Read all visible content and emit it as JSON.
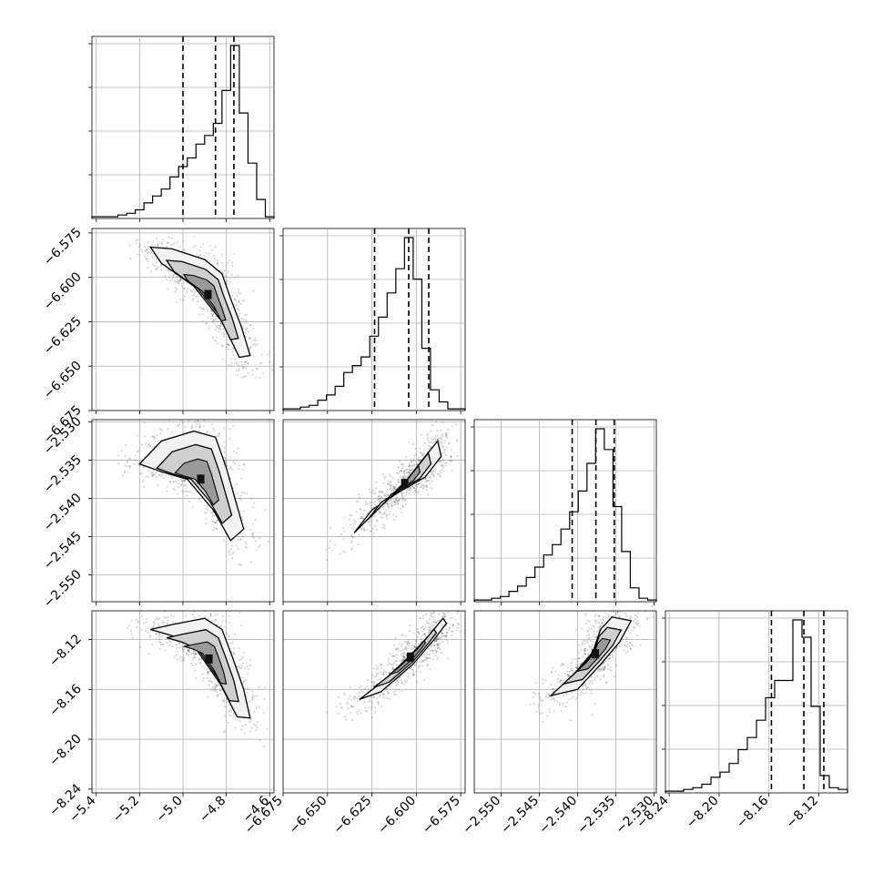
{
  "chart_data": {
    "type": "corner",
    "grid": true,
    "parameters": [
      {
        "range": [
          -5.42,
          -4.58
        ],
        "ticks": [
          -5.4,
          -5.2,
          -5.0,
          -4.8,
          -4.6
        ],
        "tick_labels": [
          "−5.4",
          "−5.2",
          "−5.0",
          "−4.8",
          "−4.6"
        ],
        "quantiles": [
          -5.0,
          -4.85,
          -4.765
        ]
      },
      {
        "range": [
          -6.675,
          -6.5725
        ],
        "ticks": [
          -6.675,
          -6.65,
          -6.625,
          -6.6,
          -6.575
        ],
        "tick_labels": [
          "−6.675",
          "−6.650",
          "−6.625",
          "−6.600",
          "−6.575"
        ],
        "quantiles": [
          -6.6235,
          -6.6043,
          -6.593
        ]
      },
      {
        "range": [
          -2.5535,
          -2.5297
        ],
        "ticks": [
          -2.55,
          -2.545,
          -2.54,
          -2.535,
          -2.53
        ],
        "tick_labels": [
          "−2.550",
          "−2.545",
          "−2.540",
          "−2.535",
          "−2.530"
        ],
        "quantiles": [
          -2.5407,
          -2.5376,
          -2.5352
        ]
      },
      {
        "range": [
          -8.243,
          -8.097
        ],
        "ticks": [
          -8.24,
          -8.2,
          -8.16,
          -8.12
        ],
        "tick_labels": [
          "−8.24",
          "−8.20",
          "−8.16",
          "−8.12"
        ],
        "quantiles": [
          -8.158,
          -8.132,
          -8.116
        ]
      }
    ],
    "row_tick_labels_extra": {
      "row1_top": "−6.675",
      "row2_top": "−2.530",
      "col4_left": "−8.24"
    },
    "histograms": [
      [
        1,
        1,
        1,
        2,
        3,
        5,
        9,
        13,
        17,
        24,
        30,
        35,
        43,
        48,
        55,
        74,
        100,
        61,
        32,
        11,
        1
      ],
      [
        1,
        1,
        2,
        3,
        6,
        9,
        14,
        22,
        26,
        31,
        43,
        54,
        68,
        82,
        100,
        76,
        36,
        12,
        5,
        1,
        1
      ],
      [
        1,
        1,
        2,
        3,
        6,
        9,
        14,
        20,
        27,
        33,
        42,
        52,
        64,
        80,
        100,
        88,
        55,
        29,
        8,
        2,
        1
      ],
      [
        1,
        1,
        2,
        3,
        5,
        9,
        12,
        17,
        25,
        32,
        42,
        55,
        65,
        65,
        100,
        90,
        50,
        10,
        3,
        2
      ]
    ],
    "pairs": [
      {
        "row": 1,
        "col": 0,
        "path": [
          [
            -5.15,
            -6.583
          ],
          [
            -5.05,
            -6.584
          ],
          [
            -4.9,
            -6.59
          ],
          [
            -4.82,
            -6.598
          ],
          [
            -4.78,
            -6.612
          ],
          [
            -4.73,
            -6.628
          ],
          [
            -4.69,
            -6.644
          ],
          [
            -4.74,
            -6.645
          ],
          [
            -4.82,
            -6.625
          ],
          [
            -4.95,
            -6.605
          ],
          [
            -5.1,
            -6.592
          ]
        ],
        "spread": 0.022
      },
      {
        "row": 2,
        "col": 0,
        "path": [
          [
            -5.2,
            -2.5355
          ],
          [
            -5.1,
            -2.5325
          ],
          [
            -4.95,
            -2.5312
          ],
          [
            -4.85,
            -2.532
          ],
          [
            -4.8,
            -2.536
          ],
          [
            -4.76,
            -2.54
          ],
          [
            -4.72,
            -2.544
          ],
          [
            -4.78,
            -2.5455
          ],
          [
            -4.86,
            -2.5415
          ],
          [
            -4.98,
            -2.5375
          ],
          [
            -5.1,
            -2.5365
          ]
        ],
        "spread": 0.0022
      },
      {
        "row": 2,
        "col": 1,
        "path": [
          [
            -6.635,
            -2.5445
          ],
          [
            -6.62,
            -2.541
          ],
          [
            -6.605,
            -2.5375
          ],
          [
            -6.595,
            -2.5345
          ],
          [
            -6.588,
            -2.5325
          ],
          [
            -6.586,
            -2.5345
          ],
          [
            -6.595,
            -2.5372
          ],
          [
            -6.61,
            -2.5392
          ],
          [
            -6.625,
            -2.5415
          ]
        ],
        "spread": 0.0012
      },
      {
        "row": 3,
        "col": 0,
        "path": [
          [
            -5.15,
            -8.112
          ],
          [
            -5.05,
            -8.108
          ],
          [
            -4.9,
            -8.103
          ],
          [
            -4.82,
            -8.112
          ],
          [
            -4.77,
            -8.135
          ],
          [
            -4.72,
            -8.16
          ],
          [
            -4.69,
            -8.183
          ],
          [
            -4.75,
            -8.182
          ],
          [
            -4.83,
            -8.155
          ],
          [
            -4.95,
            -8.125
          ],
          [
            -5.05,
            -8.117
          ]
        ],
        "spread": 0.012
      },
      {
        "row": 3,
        "col": 1,
        "path": [
          [
            -6.632,
            -8.168
          ],
          [
            -6.62,
            -8.155
          ],
          [
            -6.605,
            -8.135
          ],
          [
            -6.593,
            -8.117
          ],
          [
            -6.585,
            -8.103
          ],
          [
            -6.583,
            -8.107
          ],
          [
            -6.59,
            -8.12
          ],
          [
            -6.602,
            -8.14
          ],
          [
            -6.62,
            -8.162
          ]
        ],
        "spread": 0.006
      },
      {
        "row": 3,
        "col": 2,
        "path": [
          [
            -2.5435,
            -8.165
          ],
          [
            -2.5405,
            -8.148
          ],
          [
            -2.538,
            -8.13
          ],
          [
            -2.537,
            -8.112
          ],
          [
            -2.5355,
            -8.102
          ],
          [
            -2.533,
            -8.105
          ],
          [
            -2.5345,
            -8.122
          ],
          [
            -2.537,
            -8.14
          ],
          [
            -2.54,
            -8.16
          ]
        ],
        "spread": 0.008
      }
    ]
  }
}
